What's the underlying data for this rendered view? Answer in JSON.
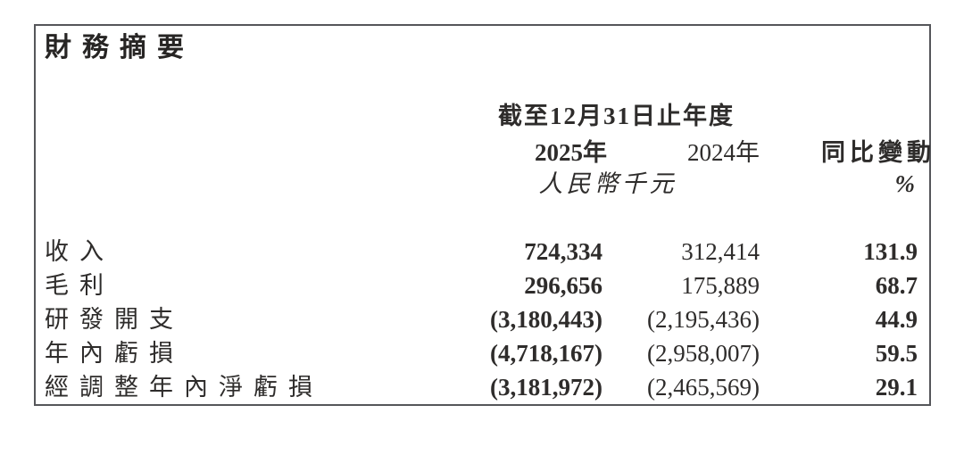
{
  "panel": {
    "title": "財務摘要"
  },
  "table": {
    "period_header": "截至12月31日止年度",
    "columns": [
      {
        "key": "y2025",
        "label": "2025年"
      },
      {
        "key": "y2024",
        "label": "2024年"
      },
      {
        "key": "change",
        "label": "同比變動"
      }
    ],
    "unit_label": "人民幣千元",
    "percent_label": "%",
    "rows": [
      {
        "label": "收入",
        "y2025": "724,334",
        "y2024": "312,414",
        "change": "131.9"
      },
      {
        "label": "毛利",
        "y2025": "296,656",
        "y2024": "175,889",
        "change": "68.7"
      },
      {
        "label": "研發開支",
        "y2025": "(3,180,443)",
        "y2024": "(2,195,436)",
        "change": "44.9"
      },
      {
        "label": "年內虧損",
        "y2025": "(4,718,167)",
        "y2024": "(2,958,007)",
        "change": "59.5"
      },
      {
        "label": "經調整年內淨虧損",
        "y2025": "(3,181,972)",
        "y2024": "(2,465,569)",
        "change": "29.1"
      }
    ]
  },
  "colors": {
    "text": "#2e2c2b",
    "border": "#55565a",
    "background": "#ffffff"
  }
}
